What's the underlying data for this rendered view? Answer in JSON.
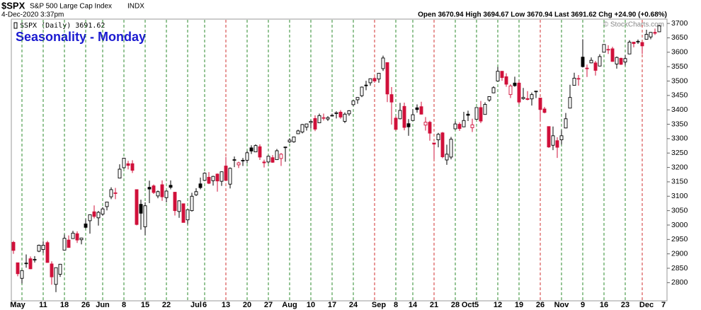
{
  "header": {
    "symbol": "$SPX",
    "name": "S&P 500 Large Cap Index",
    "exchange": "INDX",
    "timestamp": "4-Dec-2020 3:37pm",
    "quote": "Open 3670.94 High 3694.67 Low 3670.94 Last 3691.62 Chg +24.90 (+0.68%)",
    "credit": "© StockCharts.com"
  },
  "chart_data": {
    "type": "candlestick",
    "title": "Seasonality - Monday",
    "legend": "$SPX (Daily) 3691.62",
    "up_color": "#000000",
    "down_color": "#d0103a",
    "title_color": "#1a1ad0",
    "categories": [
      null,
      "May",
      null,
      null,
      null,
      null,
      null,
      "11",
      null,
      null,
      null,
      null,
      "18",
      null,
      null,
      null,
      null,
      "26",
      null,
      null,
      null,
      "Jun",
      null,
      null,
      null,
      null,
      "8",
      null,
      null,
      null,
      null,
      "15",
      null,
      null,
      null,
      null,
      "22",
      null,
      null,
      null,
      null,
      null,
      null,
      "Jul",
      null,
      "6",
      null,
      null,
      null,
      null,
      "13",
      null,
      null,
      null,
      null,
      "20",
      null,
      null,
      null,
      null,
      "27",
      null,
      null,
      null,
      null,
      "Aug",
      null,
      null,
      null,
      null,
      "10",
      null,
      null,
      null,
      null,
      "17",
      null,
      null,
      null,
      null,
      "24",
      null,
      null,
      null,
      null,
      null,
      "Sep",
      null,
      null,
      null,
      "8",
      null,
      null,
      null,
      "14",
      null,
      null,
      null,
      null,
      "21",
      null,
      null,
      null,
      null,
      "28",
      null,
      null,
      "Oct",
      null,
      "5",
      null,
      null,
      null,
      null,
      "12",
      null,
      null,
      null,
      null,
      "19",
      null,
      null,
      null,
      null,
      "26",
      null,
      null,
      null,
      null,
      "Nov",
      null,
      null,
      null,
      null,
      "9",
      null,
      null,
      null,
      null,
      "16",
      null,
      null,
      null,
      null,
      "23",
      null,
      null,
      null,
      null,
      "Dec",
      null,
      null,
      null,
      "7"
    ],
    "open": [
      2940,
      2869,
      2815,
      2868,
      2883,
      2879,
      2909,
      2915,
      2939,
      2865,
      2794,
      2829,
      2913,
      2948,
      2953,
      2970,
      2949,
      3004,
      3015,
      3046,
      3025,
      3038,
      3064,
      3098,
      3111,
      3163,
      3199,
      3213,
      3213,
      3123,
      3072,
      2994,
      3131,
      3136,
      3101,
      3140,
      3095,
      3138,
      3114,
      3047,
      3074,
      3018,
      3050,
      3105,
      3143,
      3155,
      3166,
      3154,
      3177,
      3152,
      3205,
      3142,
      3225,
      3209,
      3224,
      3225,
      3268,
      3254,
      3272,
      3219,
      3219,
      3234,
      3227,
      3231,
      3270,
      3289,
      3289,
      3317,
      3323,
      3340,
      3356,
      3370,
      3355,
      3372,
      3368,
      3380,
      3387,
      3392,
      3360,
      3386,
      3418,
      3435,
      3449,
      3486,
      3494,
      3509,
      3507,
      3543,
      3564,
      3453,
      3371,
      3369,
      3412,
      3352,
      3363,
      3407,
      3411,
      3347,
      3357,
      3285,
      3296,
      3320,
      3226,
      3236,
      3334,
      3350,
      3341,
      3385,
      3338,
      3367,
      3408,
      3384,
      3434,
      3459,
      3500,
      3534,
      3515,
      3453,
      3493,
      3493,
      3439,
      3439,
      3438,
      3464,
      3441,
      3403,
      3342,
      3277,
      3293,
      3296,
      3337,
      3406,
      3485,
      3508,
      3583,
      3543,
      3563,
      3563,
      3552,
      3600,
      3610,
      3612,
      3559,
      3579,
      3566,
      3594,
      3635,
      3638,
      3634,
      3645,
      3653,
      3669,
      3670.94,
      null
    ],
    "high": [
      2945,
      2869,
      2844,
      2898,
      2891,
      2892,
      2932,
      2944,
      2945,
      2874,
      2852,
      2865,
      2968,
      2964,
      2980,
      2978,
      2956,
      3021,
      3036,
      3068,
      3049,
      3062,
      3081,
      3131,
      3129,
      3211,
      3233,
      3223,
      3225,
      3123,
      3088,
      3079,
      3154,
      3141,
      3120,
      3155,
      3120,
      3155,
      3115,
      3086,
      3074,
      3054,
      3112,
      3128,
      3165,
      3183,
      3184,
      3171,
      3179,
      3186,
      3236,
      3200,
      3238,
      3220,
      3233,
      3258,
      3277,
      3280,
      3280,
      3227,
      3241,
      3243,
      3264,
      3250,
      3272,
      3302,
      3306,
      3331,
      3351,
      3352,
      3364,
      3381,
      3387,
      3387,
      3378,
      3387,
      3395,
      3399,
      3391,
      3399,
      3432,
      3444,
      3481,
      3501,
      3509,
      3514,
      3528,
      3588,
      3564,
      3479,
      3379,
      3424,
      3425,
      3368,
      3402,
      3419,
      3428,
      3375,
      3362,
      3285,
      3320,
      3323,
      3279,
      3306,
      3360,
      3357,
      3393,
      3397,
      3369,
      3409,
      3431,
      3426,
      3447,
      3482,
      3549,
      3534,
      3527,
      3489,
      3515,
      3502,
      3476,
      3465,
      3460,
      3466,
      3441,
      3410,
      3342,
      3342,
      3305,
      3330,
      3389,
      3487,
      3529,
      3521,
      3645,
      3557,
      3582,
      3570,
      3593,
      3628,
      3624,
      3619,
      3585,
      3581,
      3590,
      3642,
      3635,
      3644,
      3634,
      3678,
      3670,
      3682,
      3694.67,
      null
    ],
    "low": [
      2900,
      2822,
      2797,
      2852,
      2847,
      2870,
      2906,
      2903,
      2869,
      2793,
      2767,
      2820,
      2913,
      2922,
      2953,
      2938,
      2933,
      2988,
      2970,
      3023,
      2998,
      3032,
      3051,
      3090,
      3090,
      3163,
      3196,
      3193,
      3181,
      2999,
      2984,
      2965,
      3076,
      3108,
      3093,
      3084,
      3079,
      3124,
      3033,
      3025,
      3010,
      3002,
      3047,
      3101,
      3124,
      3155,
      3142,
      3137,
      3116,
      3136,
      3156,
      3127,
      3201,
      3198,
      3205,
      3215,
      3247,
      3253,
      3226,
      3200,
      3214,
      3216,
      3227,
      3205,
      3220,
      3285,
      3286,
      3317,
      3318,
      3328,
      3335,
      3326,
      3355,
      3363,
      3361,
      3379,
      3370,
      3369,
      3354,
      3379,
      3413,
      3421,
      3444,
      3468,
      3484,
      3494,
      3494,
      3535,
      3427,
      3349,
      3329,
      3367,
      3329,
      3310,
      3363,
      3390,
      3384,
      3328,
      3293,
      3229,
      3270,
      3232,
      3209,
      3228,
      3332,
      3327,
      3340,
      3361,
      3323,
      3367,
      3354,
      3384,
      3428,
      3458,
      3500,
      3501,
      3480,
      3441,
      3480,
      3419,
      3435,
      3433,
      3415,
      3441,
      3364,
      3388,
      3268,
      3260,
      3233,
      3279,
      3336,
      3405,
      3485,
      3484,
      3547,
      3514,
      3562,
      3519,
      3552,
      3600,
      3594,
      3567,
      3543,
      3556,
      3553,
      3594,
      3617,
      3629,
      3594,
      3645,
      3645,
      3660,
      3670.94,
      null
    ],
    "close": [
      2912,
      2831,
      2842,
      2868,
      2848,
      2881,
      2930,
      2930,
      2870,
      2820,
      2852,
      2864,
      2954,
      2922,
      2972,
      2948,
      2955,
      2992,
      3036,
      3030,
      3044,
      3056,
      3080,
      3123,
      3112,
      3194,
      3232,
      3207,
      3190,
      3002,
      3041,
      3067,
      3125,
      3113,
      3116,
      3098,
      3118,
      3131,
      3050,
      3084,
      3009,
      3053,
      3100,
      3116,
      3130,
      3180,
      3145,
      3169,
      3153,
      3185,
      3155,
      3197,
      3227,
      3216,
      3225,
      3251,
      3257,
      3276,
      3236,
      3216,
      3239,
      3218,
      3258,
      3246,
      3271,
      3295,
      3306,
      3327,
      3349,
      3351,
      3360,
      3333,
      3380,
      3373,
      3373,
      3381,
      3390,
      3375,
      3385,
      3397,
      3431,
      3443,
      3479,
      3485,
      3508,
      3500,
      3527,
      3580,
      3455,
      3427,
      3332,
      3398,
      3339,
      3341,
      3383,
      3401,
      3385,
      3357,
      3319,
      3281,
      3315,
      3237,
      3246,
      3298,
      3351,
      3335,
      3363,
      3381,
      3348,
      3408,
      3361,
      3419,
      3446,
      3477,
      3534,
      3512,
      3489,
      3483,
      3484,
      3427,
      3443,
      3436,
      3453,
      3465,
      3401,
      3391,
      3271,
      3310,
      3270,
      3310,
      3369,
      3443,
      3510,
      3509,
      3550,
      3545,
      3572,
      3537,
      3585,
      3627,
      3610,
      3568,
      3582,
      3558,
      3578,
      3635,
      3630,
      3638,
      3622,
      3662,
      3669,
      3666,
      3691.62,
      null
    ],
    "ylim": [
      2737,
      3715
    ],
    "yticks": [
      2800,
      2850,
      2900,
      2950,
      3000,
      3050,
      3100,
      3150,
      3200,
      3250,
      3300,
      3350,
      3400,
      3450,
      3500,
      3550,
      3600,
      3650,
      3700
    ],
    "vlines": [
      {
        "at": 2,
        "color": "#2e8b2e"
      },
      {
        "at": 7,
        "color": "#2e8b2e"
      },
      {
        "at": 12,
        "color": "#2e8b2e"
      },
      {
        "at": 17,
        "color": "#2e8b2e"
      },
      {
        "at": 21,
        "color": "#2e8b2e"
      },
      {
        "at": 26,
        "color": "#2e8b2e"
      },
      {
        "at": 31,
        "color": "#2e8b2e"
      },
      {
        "at": 36,
        "color": "#2e8b2e"
      },
      {
        "at": 41,
        "color": "#2e8b2e"
      },
      {
        "at": 45,
        "color": "#2e8b2e"
      },
      {
        "at": 50,
        "color": "#d03030"
      },
      {
        "at": 55,
        "color": "#2e8b2e"
      },
      {
        "at": 60,
        "color": "#2e8b2e"
      },
      {
        "at": 65,
        "color": "#2e8b2e"
      },
      {
        "at": 70,
        "color": "#2e8b2e"
      },
      {
        "at": 75,
        "color": "#2e8b2e"
      },
      {
        "at": 80,
        "color": "#2e8b2e"
      },
      {
        "at": 85,
        "color": "#d03030"
      },
      {
        "at": 90,
        "color": "#2e8b2e"
      },
      {
        "at": 94,
        "color": "#2e8b2e"
      },
      {
        "at": 99,
        "color": "#d03030"
      },
      {
        "at": 104,
        "color": "#2e8b2e"
      },
      {
        "at": 109,
        "color": "#2e8b2e"
      },
      {
        "at": 114,
        "color": "#2e8b2e"
      },
      {
        "at": 119,
        "color": "#2e8b2e"
      },
      {
        "at": 124,
        "color": "#d03030"
      },
      {
        "at": 129,
        "color": "#2e8b2e"
      },
      {
        "at": 134,
        "color": "#2e8b2e"
      },
      {
        "at": 139,
        "color": "#2e8b2e"
      },
      {
        "at": 144,
        "color": "#2e8b2e"
      },
      {
        "at": 148,
        "color": "#d03030"
      }
    ]
  }
}
